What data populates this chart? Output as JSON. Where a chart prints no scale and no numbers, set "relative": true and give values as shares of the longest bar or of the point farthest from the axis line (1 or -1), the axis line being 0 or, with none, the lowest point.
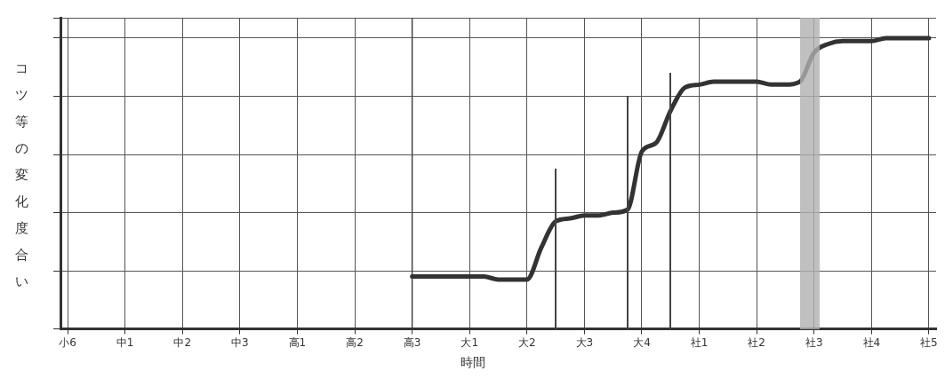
{
  "chart_data": {
    "type": "line",
    "relative": true,
    "xlabel": "時間",
    "ylabel": "コツ等の変化度合い",
    "categories": [
      "小6",
      null,
      null,
      null,
      "中1",
      null,
      null,
      null,
      "中2",
      null,
      null,
      null,
      "中3",
      null,
      null,
      null,
      "高1",
      null,
      null,
      null,
      "高2",
      null,
      null,
      null,
      "高3",
      null,
      null,
      null,
      "大1",
      null,
      null,
      null,
      "大2",
      null,
      null,
      null,
      "大3",
      null,
      null,
      null,
      "大4",
      null,
      null,
      null,
      "社1",
      null,
      null,
      null,
      "社2",
      null,
      null,
      null,
      "社3",
      null,
      null,
      null,
      "社4",
      null,
      null,
      null,
      "社5"
    ],
    "series": [
      {
        "color": "#333333",
        "values": [
          null,
          null,
          null,
          null,
          null,
          null,
          null,
          null,
          null,
          null,
          null,
          null,
          null,
          null,
          null,
          null,
          null,
          null,
          null,
          null,
          null,
          null,
          null,
          null,
          0.18,
          0.18,
          0.18,
          0.18,
          0.18,
          0.18,
          0.17,
          0.17,
          0.17,
          0.28,
          0.37,
          0.38,
          0.39,
          0.39,
          0.4,
          0.41,
          0.61,
          0.64,
          0.75,
          0.83,
          0.84,
          0.85,
          0.85,
          0.85,
          0.85,
          0.84,
          0.84,
          0.85,
          0.95,
          0.98,
          0.99,
          0.99,
          0.99,
          1,
          1,
          1,
          1
        ]
      }
    ],
    "ref_lines": [
      {
        "axis": "x",
        "value": "高3",
        "color": "#444444"
      }
    ],
    "grid": true,
    "legend": false,
    "marker": "none",
    "line_style": "solid"
  }
}
